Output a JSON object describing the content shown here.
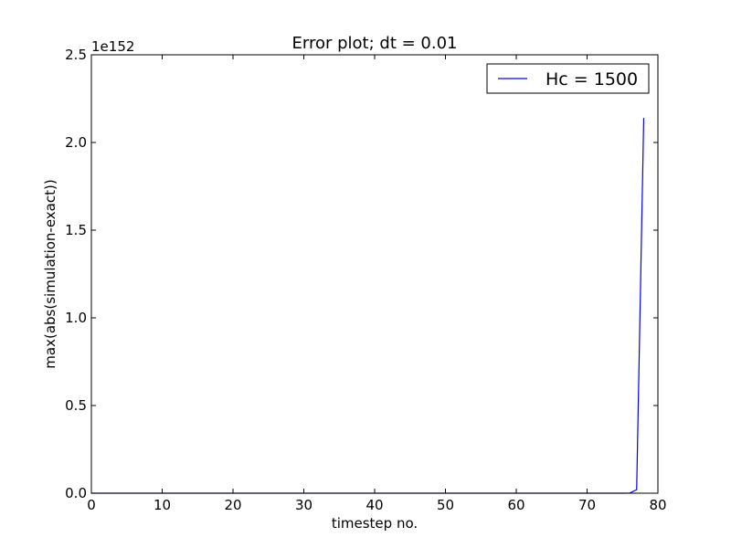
{
  "chart_data": {
    "type": "line",
    "title": "Error plot; dt = 0.01",
    "xlabel": "timestep no.",
    "ylabel": "max(abs(simulation-exact))",
    "y_offset_label": "1e152",
    "xlim": [
      0,
      80
    ],
    "ylim": [
      0,
      2.5
    ],
    "x_ticks": [
      0,
      10,
      20,
      30,
      40,
      50,
      60,
      70,
      80
    ],
    "x_tick_labels": [
      "0",
      "10",
      "20",
      "30",
      "40",
      "50",
      "60",
      "70",
      "80"
    ],
    "y_ticks": [
      0.0,
      0.5,
      1.0,
      1.5,
      2.0,
      2.5
    ],
    "y_tick_labels": [
      "0.0",
      "0.5",
      "1.0",
      "1.5",
      "2.0",
      "2.5"
    ],
    "grid": false,
    "legend_position": "top-right",
    "series": [
      {
        "name": "Hc = 1500",
        "color": "#0000ff",
        "x": [
          0,
          10,
          20,
          30,
          40,
          50,
          60,
          70,
          75,
          76,
          77,
          78
        ],
        "y": [
          0,
          0,
          0,
          0,
          0,
          0,
          0,
          0,
          0,
          0.0003,
          0.02,
          2.14
        ]
      }
    ]
  }
}
